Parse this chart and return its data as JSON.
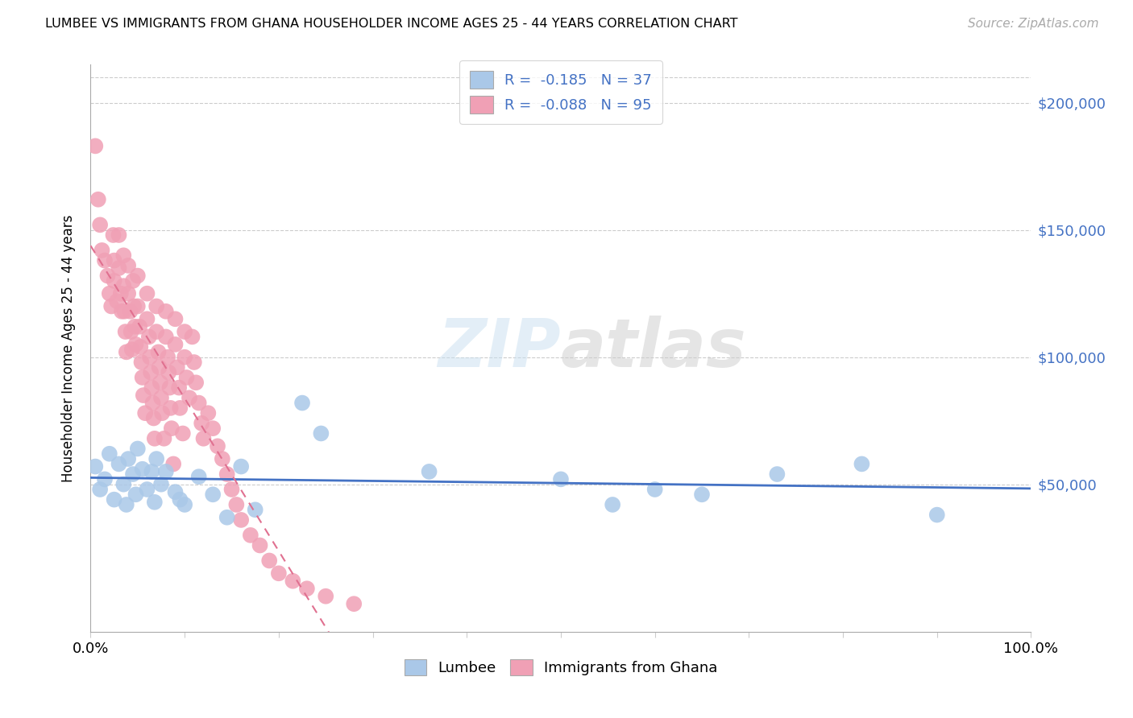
{
  "title": "LUMBEE VS IMMIGRANTS FROM GHANA HOUSEHOLDER INCOME AGES 25 - 44 YEARS CORRELATION CHART",
  "source": "Source: ZipAtlas.com",
  "ylabel": "Householder Income Ages 25 - 44 years",
  "r_lumbee": -0.185,
  "n_lumbee": 37,
  "r_ghana": -0.088,
  "n_ghana": 95,
  "ytick_vals": [
    0,
    50000,
    100000,
    150000,
    200000
  ],
  "ytick_labels_right": [
    "",
    "$50,000",
    "$100,000",
    "$150,000",
    "$200,000"
  ],
  "xlim": [
    0.0,
    1.0
  ],
  "ylim": [
    -8000,
    215000
  ],
  "lumbee_scatter_color": "#aac8e8",
  "ghana_scatter_color": "#f0a0b5",
  "lumbee_line_color": "#4472c4",
  "ghana_line_color": "#e07090",
  "legend_labels": [
    "Lumbee",
    "Immigrants from Ghana"
  ],
  "lumbee_x": [
    0.005,
    0.01,
    0.015,
    0.02,
    0.025,
    0.03,
    0.035,
    0.038,
    0.04,
    0.045,
    0.048,
    0.05,
    0.055,
    0.06,
    0.065,
    0.068,
    0.07,
    0.075,
    0.08,
    0.09,
    0.095,
    0.1,
    0.115,
    0.13,
    0.145,
    0.16,
    0.175,
    0.225,
    0.245,
    0.36,
    0.5,
    0.555,
    0.6,
    0.65,
    0.73,
    0.82,
    0.9
  ],
  "lumbee_y": [
    57000,
    48000,
    52000,
    62000,
    44000,
    58000,
    50000,
    42000,
    60000,
    54000,
    46000,
    64000,
    56000,
    48000,
    55000,
    43000,
    60000,
    50000,
    55000,
    47000,
    44000,
    42000,
    53000,
    46000,
    37000,
    57000,
    40000,
    82000,
    70000,
    55000,
    52000,
    42000,
    48000,
    46000,
    54000,
    58000,
    38000
  ],
  "ghana_x": [
    0.005,
    0.008,
    0.01,
    0.012,
    0.015,
    0.018,
    0.02,
    0.022,
    0.024,
    0.025,
    0.025,
    0.028,
    0.03,
    0.03,
    0.032,
    0.033,
    0.035,
    0.035,
    0.036,
    0.037,
    0.038,
    0.04,
    0.04,
    0.042,
    0.043,
    0.044,
    0.045,
    0.046,
    0.047,
    0.048,
    0.05,
    0.05,
    0.052,
    0.053,
    0.054,
    0.055,
    0.056,
    0.058,
    0.06,
    0.06,
    0.062,
    0.063,
    0.064,
    0.065,
    0.066,
    0.067,
    0.068,
    0.07,
    0.07,
    0.072,
    0.073,
    0.074,
    0.075,
    0.076,
    0.078,
    0.08,
    0.08,
    0.082,
    0.083,
    0.084,
    0.085,
    0.086,
    0.088,
    0.09,
    0.09,
    0.092,
    0.094,
    0.095,
    0.098,
    0.1,
    0.1,
    0.102,
    0.105,
    0.108,
    0.11,
    0.112,
    0.115,
    0.118,
    0.12,
    0.125,
    0.13,
    0.135,
    0.14,
    0.145,
    0.15,
    0.155,
    0.16,
    0.17,
    0.18,
    0.19,
    0.2,
    0.215,
    0.23,
    0.25,
    0.28
  ],
  "ghana_y": [
    183000,
    162000,
    152000,
    142000,
    138000,
    132000,
    125000,
    120000,
    148000,
    138000,
    130000,
    122000,
    148000,
    135000,
    125000,
    118000,
    140000,
    128000,
    118000,
    110000,
    102000,
    136000,
    125000,
    118000,
    110000,
    103000,
    130000,
    120000,
    112000,
    105000,
    132000,
    120000,
    112000,
    104000,
    98000,
    92000,
    85000,
    78000,
    125000,
    115000,
    108000,
    100000,
    94000,
    88000,
    82000,
    76000,
    68000,
    120000,
    110000,
    102000,
    96000,
    90000,
    84000,
    78000,
    68000,
    118000,
    108000,
    100000,
    94000,
    88000,
    80000,
    72000,
    58000,
    115000,
    105000,
    96000,
    88000,
    80000,
    70000,
    110000,
    100000,
    92000,
    84000,
    108000,
    98000,
    90000,
    82000,
    74000,
    68000,
    78000,
    72000,
    65000,
    60000,
    54000,
    48000,
    42000,
    36000,
    30000,
    26000,
    20000,
    15000,
    12000,
    9000,
    6000,
    3000
  ]
}
